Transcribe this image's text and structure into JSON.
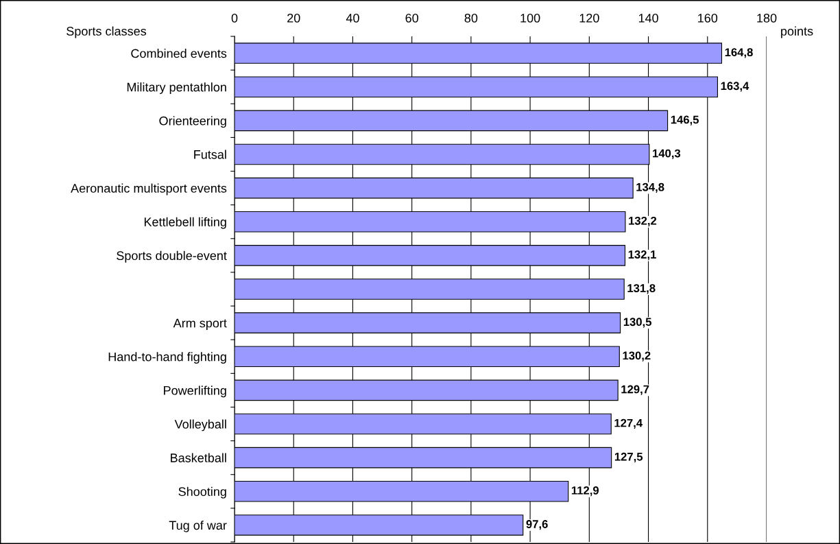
{
  "chart_data": {
    "type": "bar",
    "orientation": "horizontal",
    "ylabel": "Sports classes",
    "xlabel": "points",
    "categories": [
      "Combined events",
      "Military pentathlon",
      "Orienteering",
      "Futsal",
      "Aeronautic multisport events",
      "Kettlebell lifting",
      "Sports double-event",
      null,
      "Arm sport",
      "Hand-to-hand fighting",
      "Powerlifting",
      "Volleyball",
      "Basketball",
      "Shooting",
      "Tug of war"
    ],
    "values": [
      164.8,
      163.4,
      146.5,
      140.3,
      134.8,
      132.2,
      132.1,
      131.8,
      130.5,
      130.2,
      129.7,
      127.4,
      127.5,
      112.9,
      97.6
    ],
    "value_labels": [
      "164,8",
      "163,4",
      "146,5",
      "140,3",
      "134,8",
      "132,2",
      "132,1",
      "131,8",
      "130,5",
      "130,2",
      "129,7",
      "127,4",
      "127,5",
      "112,9",
      "97,6"
    ],
    "color": "#9999ff",
    "xlim": [
      0,
      180
    ],
    "xticks": [
      0,
      20,
      40,
      60,
      80,
      100,
      120,
      140,
      160,
      180
    ],
    "grid": "x",
    "legend": false
  }
}
